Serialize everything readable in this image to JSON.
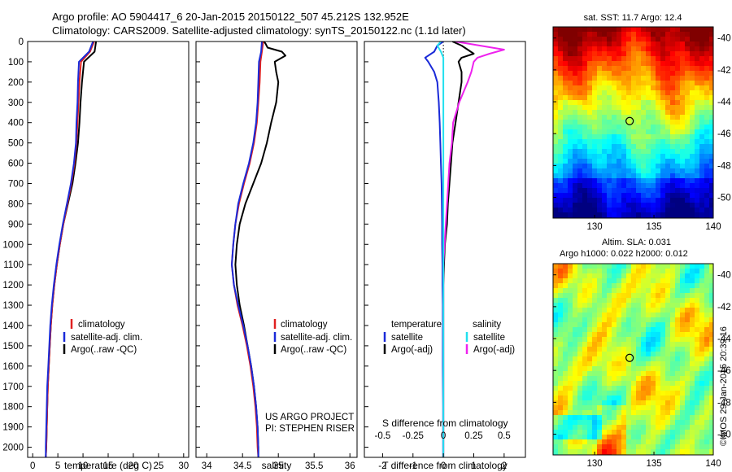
{
  "header": {
    "line1": "Argo profile: AO 5904417_6 20-Jan-2015 20150122_507 45.212S 132.952E",
    "line2": "Climatology: CARS2009. Satellite-adjusted climatology: synTS_20150122.nc (1.1d later)"
  },
  "colors": {
    "climatology": "#e02020",
    "satellite": "#1a2ad8",
    "argo": "#000000",
    "salinity_satellite": "#22e0ee",
    "salinity_argo": "#ee22ee"
  },
  "credits": {
    "project": "US ARGO PROJECT",
    "pi": "PI: STEPHEN RISER",
    "watermark": "©IMOS 29-Jan-2015 20:39:16"
  },
  "chart_data": [
    {
      "id": "temperature",
      "type": "line",
      "xlabel": "temperature (deg C)",
      "ylabel": "",
      "xlim": [
        -1,
        31
      ],
      "ylim": [
        2050,
        0
      ],
      "xticks": [
        0,
        5,
        10,
        15,
        20,
        25,
        30
      ],
      "yticks": [
        0,
        100,
        200,
        300,
        400,
        500,
        600,
        700,
        800,
        900,
        1000,
        1100,
        1200,
        1300,
        1400,
        1500,
        1600,
        1700,
        1800,
        1900,
        2000
      ],
      "legend": [
        "climatology",
        "satellite-adj. clim.",
        "Argo(..raw -QC)"
      ],
      "legend_position": "lower-right",
      "series": [
        {
          "name": "climatology",
          "depth": [
            0,
            50,
            100,
            200,
            300,
            400,
            500,
            600,
            700,
            800,
            900,
            1000,
            1100,
            1200,
            1300,
            1400,
            1500,
            1600,
            1700,
            1800,
            1900,
            2000,
            2050
          ],
          "values": [
            12.2,
            11.4,
            9.6,
            9.3,
            9.1,
            8.9,
            8.7,
            8.3,
            7.7,
            6.9,
            6.1,
            5.4,
            4.8,
            4.3,
            3.9,
            3.6,
            3.4,
            3.2,
            3.0,
            2.9,
            2.8,
            2.7,
            2.6
          ]
        },
        {
          "name": "satellite-adj. clim.",
          "depth": [
            0,
            50,
            100,
            200,
            300,
            400,
            500,
            600,
            700,
            800,
            900,
            1000,
            1100,
            1200,
            1300,
            1400,
            1500,
            1600,
            1700,
            1800,
            1900,
            2000,
            2050
          ],
          "values": [
            12.0,
            11.2,
            9.2,
            9.0,
            8.9,
            8.7,
            8.6,
            8.2,
            7.6,
            6.8,
            6.0,
            5.3,
            4.7,
            4.2,
            3.8,
            3.5,
            3.3,
            3.1,
            2.9,
            2.8,
            2.7,
            2.6,
            2.6
          ]
        },
        {
          "name": "Argo(..raw -QC)",
          "depth": [
            0,
            50,
            100,
            200,
            300,
            400,
            500,
            600,
            700,
            800,
            900,
            1000,
            1100,
            1200,
            1300,
            1400,
            1500,
            1600,
            1700,
            1800,
            1900,
            2000,
            2050
          ],
          "values": [
            12.6,
            12.3,
            10.2,
            9.8,
            9.5,
            9.3,
            9.0,
            8.5,
            7.9,
            7.0,
            6.1,
            5.4,
            4.8,
            4.3,
            3.9,
            3.6,
            3.4,
            3.2,
            3.0,
            2.9,
            2.8,
            2.7,
            2.6
          ]
        }
      ]
    },
    {
      "id": "salinity",
      "type": "line",
      "xlabel": "salinity",
      "ylabel": "",
      "xlim": [
        33.85,
        36.1
      ],
      "ylim": [
        2050,
        0
      ],
      "xticks": [
        34,
        34.5,
        35,
        35.5,
        36
      ],
      "legend": [
        "climatology",
        "satellite-adj. clim.",
        "Argo(..raw -QC)"
      ],
      "legend_position": "lower-right",
      "series": [
        {
          "name": "climatology",
          "depth": [
            0,
            50,
            100,
            200,
            300,
            400,
            500,
            600,
            700,
            800,
            900,
            1000,
            1100,
            1200,
            1300,
            1400,
            1500,
            1600,
            1700,
            1800,
            1900,
            2000,
            2050
          ],
          "values": [
            34.79,
            34.77,
            34.75,
            34.74,
            34.72,
            34.7,
            34.66,
            34.6,
            34.52,
            34.45,
            34.4,
            34.37,
            34.35,
            34.38,
            34.43,
            34.5,
            34.56,
            34.61,
            34.65,
            34.68,
            34.7,
            34.71,
            34.72
          ]
        },
        {
          "name": "satellite-adj. clim.",
          "depth": [
            0,
            50,
            100,
            200,
            300,
            400,
            500,
            600,
            700,
            800,
            900,
            1000,
            1100,
            1200,
            1300,
            1400,
            1500,
            1600,
            1700,
            1800,
            1900,
            2000,
            2050
          ],
          "values": [
            34.77,
            34.76,
            34.73,
            34.72,
            34.71,
            34.69,
            34.65,
            34.59,
            34.51,
            34.44,
            34.4,
            34.37,
            34.35,
            34.38,
            34.44,
            34.51,
            34.57,
            34.62,
            34.66,
            34.69,
            34.71,
            34.72,
            34.72
          ]
        },
        {
          "name": "Argo(..raw -QC)",
          "depth": [
            0,
            10,
            30,
            50,
            70,
            90,
            100,
            150,
            200,
            300,
            400,
            500,
            600,
            700,
            800,
            900,
            1000,
            1100,
            1200,
            1300,
            1400,
            1500,
            1600,
            1700,
            1800,
            1900,
            2000,
            2050
          ],
          "values": [
            34.8,
            34.82,
            34.85,
            35.05,
            35.1,
            35.0,
            34.95,
            34.97,
            35.0,
            34.97,
            34.9,
            34.84,
            34.76,
            34.65,
            34.54,
            34.46,
            34.42,
            34.4,
            34.42,
            34.46,
            34.52,
            34.57,
            34.62,
            34.66,
            34.69,
            34.71,
            34.72,
            34.72
          ]
        }
      ]
    },
    {
      "id": "differences",
      "type": "line",
      "xlabel": "T difference from climatology",
      "xlabel_top": "S difference from climatology",
      "xlim": [
        -2.6,
        2.7
      ],
      "ylim": [
        2050,
        0
      ],
      "xticks": [
        -2,
        -1,
        0,
        1,
        2
      ],
      "xticks_s": [
        -0.5,
        -0.25,
        0,
        0.25,
        0.5
      ],
      "legend_titles": [
        "temperature",
        "salinity"
      ],
      "legend": [
        "satellite",
        "Argo(-adj)",
        "satellite",
        "Argo(-adj)"
      ],
      "series": [
        {
          "name": "temperature satellite",
          "depth": [
            0,
            20,
            50,
            80,
            100,
            150,
            200,
            300,
            400,
            500,
            600,
            700,
            800,
            900,
            1000,
            1100,
            1200,
            1300,
            1400,
            1600,
            1800,
            2000,
            2050
          ],
          "values": [
            0.0,
            -0.2,
            -0.3,
            -0.6,
            -0.5,
            -0.3,
            -0.2,
            -0.15,
            -0.12,
            -0.1,
            -0.08,
            -0.06,
            -0.05,
            -0.04,
            -0.04,
            -0.03,
            -0.03,
            -0.02,
            -0.02,
            -0.02,
            -0.01,
            -0.01,
            -0.01
          ]
        },
        {
          "name": "temperature Argo(-adj)",
          "depth": [
            0,
            20,
            40,
            60,
            80,
            100,
            150,
            200,
            300,
            400,
            500,
            600,
            700,
            800,
            900,
            1000,
            1100,
            1200,
            1300,
            1400,
            1600,
            1800,
            2000,
            2050
          ],
          "values": [
            0.3,
            0.6,
            0.8,
            1.0,
            0.6,
            0.5,
            0.6,
            0.6,
            0.5,
            0.4,
            0.3,
            0.25,
            0.2,
            0.15,
            0.12,
            0.05,
            0.02,
            0.0,
            0.0,
            0.0,
            0.0,
            0.0,
            0.0,
            0.0
          ]
        },
        {
          "name": "salinity satellite",
          "depth": [
            0,
            20,
            50,
            80,
            100,
            200,
            400,
            600,
            800,
            1000,
            1200,
            1400,
            1600,
            1800,
            2000,
            2050
          ],
          "values": [
            -0.02,
            -0.05,
            -0.02,
            0.0,
            0.0,
            0.0,
            0.0,
            0.0,
            0.0,
            0.0,
            0.0,
            0.0,
            0.0,
            0.0,
            0.0,
            0.0
          ]
        },
        {
          "name": "salinity Argo(-adj)",
          "depth": [
            0,
            20,
            40,
            60,
            80,
            100,
            150,
            200,
            300,
            400,
            500,
            600,
            700,
            800,
            900,
            1000,
            1100,
            1200,
            1400,
            1600,
            1800,
            2000,
            2050
          ],
          "values": [
            0.1,
            0.3,
            0.5,
            0.38,
            0.28,
            0.25,
            0.23,
            0.2,
            0.13,
            0.08,
            0.07,
            0.05,
            0.04,
            0.03,
            0.02,
            0.01,
            0.0,
            0.0,
            0.0,
            0.0,
            0.0,
            0.0,
            0.0
          ]
        }
      ]
    },
    {
      "id": "sst_map",
      "type": "heatmap",
      "title": "sat. SST: 11.7 Argo: 12.4",
      "xlim": [
        126.5,
        140
      ],
      "ylim": [
        -51.3,
        -39.3
      ],
      "xticks": [
        130,
        135,
        140
      ],
      "yticks": [
        -40,
        -42,
        -44,
        -46,
        -48,
        -50
      ],
      "profile_marker": {
        "lon": 132.952,
        "lat": -45.212
      }
    },
    {
      "id": "sla_map",
      "type": "heatmap",
      "title": "Altim. SLA: 0.031",
      "subtitle": "Argo h1000: 0.022 h2000: 0.012",
      "xlim": [
        126.5,
        140
      ],
      "ylim": [
        -51.3,
        -39.3
      ],
      "xticks": [
        130,
        135,
        140
      ],
      "yticks": [
        -40,
        -42,
        -44,
        -46,
        -48,
        -50
      ],
      "profile_marker": {
        "lon": 132.952,
        "lat": -45.212
      }
    }
  ]
}
